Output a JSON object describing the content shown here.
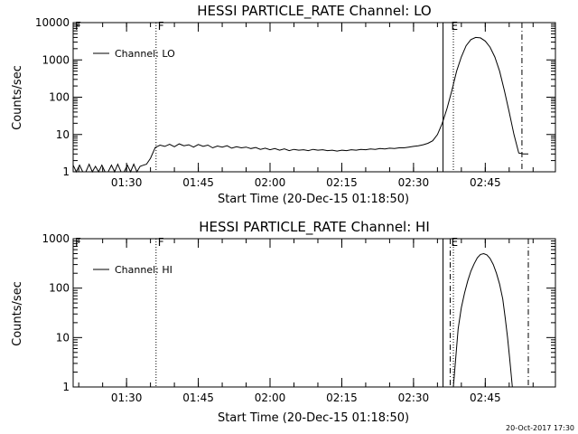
{
  "chart_data": [
    {
      "type": "line",
      "title": "HESSI PARTICLE_RATE Channel: LO",
      "xlabel": "Start Time (20-Dec-15 01:18:50)",
      "ylabel": "Counts/sec",
      "yscale": "log",
      "ylim": [
        1,
        10000
      ],
      "xlim": [
        "01:18:50",
        "02:59:40"
      ],
      "xticks": [
        "01:30",
        "01:45",
        "02:00",
        "02:15",
        "02:30",
        "02:45"
      ],
      "yticks": [
        "1",
        "10",
        "100",
        "1000",
        "10000"
      ],
      "legend": "top-left",
      "series": [
        {
          "name": "Channel: LO",
          "x": [
            "01:18:50",
            "01:19:30",
            "01:20:10",
            "01:20:50",
            "01:21:30",
            "01:22:10",
            "01:22:50",
            "01:23:30",
            "01:24:10",
            "01:24:50",
            "01:25:30",
            "01:26:10",
            "01:26:50",
            "01:27:30",
            "01:28:10",
            "01:28:50",
            "01:29:30",
            "01:30:10",
            "01:30:50",
            "01:31:30",
            "01:32:10",
            "01:32:50",
            "01:33:30",
            "01:34:10",
            "01:35:00",
            "01:36:00",
            "01:37:00",
            "01:38:00",
            "01:39:00",
            "01:40:00",
            "01:41:00",
            "01:42:00",
            "01:43:00",
            "01:44:00",
            "01:45:00",
            "01:46:00",
            "01:47:00",
            "01:48:00",
            "01:49:00",
            "01:50:00",
            "01:51:00",
            "01:52:00",
            "01:53:00",
            "01:54:00",
            "01:55:00",
            "01:56:00",
            "01:57:00",
            "01:58:00",
            "01:59:00",
            "02:00:00",
            "02:01:00",
            "02:02:00",
            "02:03:00",
            "02:04:00",
            "02:05:00",
            "02:06:00",
            "02:07:00",
            "02:08:00",
            "02:09:00",
            "02:10:00",
            "02:11:00",
            "02:12:00",
            "02:13:00",
            "02:14:00",
            "02:15:00",
            "02:16:00",
            "02:17:00",
            "02:18:00",
            "02:19:00",
            "02:20:00",
            "02:21:00",
            "02:22:00",
            "02:23:00",
            "02:24:00",
            "02:25:00",
            "02:26:00",
            "02:27:00",
            "02:28:00",
            "02:29:00",
            "02:30:00",
            "02:31:00",
            "02:32:00",
            "02:33:00",
            "02:34:00",
            "02:35:00",
            "02:36:00",
            "02:37:00",
            "02:38:00",
            "02:39:00",
            "02:40:00",
            "02:41:00",
            "02:42:00",
            "02:43:00",
            "02:44:00",
            "02:45:00",
            "02:46:00",
            "02:47:00",
            "02:48:00",
            "02:49:00",
            "02:50:00",
            "02:51:00",
            "02:52:00",
            "02:53:00",
            "02:54:00"
          ],
          "values": [
            1.5,
            1,
            1.5,
            1,
            1,
            1.6,
            1,
            1.4,
            1,
            1.5,
            1,
            1,
            1.5,
            1,
            1.6,
            1,
            1,
            1.5,
            1,
            1.6,
            1,
            1.4,
            1.5,
            1.6,
            2.3,
            4.5,
            5.2,
            4.8,
            5.5,
            4.7,
            5.6,
            5.0,
            5.3,
            4.6,
            5.4,
            4.8,
            5.2,
            4.4,
            4.9,
            4.6,
            5.0,
            4.3,
            4.7,
            4.4,
            4.6,
            4.2,
            4.5,
            4.0,
            4.3,
            3.9,
            4.2,
            3.8,
            4.1,
            3.7,
            4.0,
            3.8,
            3.9,
            3.7,
            4.0,
            3.8,
            3.9,
            3.7,
            3.8,
            3.6,
            3.8,
            3.7,
            3.9,
            3.8,
            4.0,
            3.9,
            4.1,
            4.0,
            4.2,
            4.1,
            4.3,
            4.2,
            4.4,
            4.4,
            4.6,
            4.8,
            5.0,
            5.3,
            5.8,
            6.8,
            10,
            20,
            50,
            150,
            500,
            1200,
            2400,
            3500,
            4000,
            3900,
            3200,
            2200,
            1200,
            500,
            150,
            40,
            10,
            3.2,
            3.0,
            3.0
          ]
        }
      ],
      "annotations": [
        "F",
        "E"
      ]
    },
    {
      "type": "line",
      "title": "HESSI PARTICLE_RATE Channel: HI",
      "xlabel": "Start Time (20-Dec-15 01:18:50)",
      "ylabel": "Counts/sec",
      "yscale": "log",
      "ylim": [
        1,
        1000
      ],
      "xlim": [
        "01:18:50",
        "02:59:40"
      ],
      "xticks": [
        "01:30",
        "01:45",
        "02:00",
        "02:15",
        "02:30",
        "02:45"
      ],
      "yticks": [
        "1",
        "10",
        "100",
        "1000"
      ],
      "legend": "top-left",
      "series": [
        {
          "name": "Channel: HI",
          "x": [
            "02:38:20",
            "02:38:50",
            "02:39:20",
            "02:40:00",
            "02:40:40",
            "02:41:20",
            "02:42:00",
            "02:42:40",
            "02:43:20",
            "02:44:00",
            "02:44:40",
            "02:45:20",
            "02:46:00",
            "02:46:40",
            "02:47:20",
            "02:48:00",
            "02:48:40",
            "02:49:10",
            "02:49:40",
            "02:50:05",
            "02:50:25",
            "02:50:40"
          ],
          "values": [
            1,
            4,
            15,
            40,
            80,
            140,
            220,
            310,
            410,
            480,
            500,
            470,
            400,
            300,
            200,
            120,
            60,
            25,
            10,
            4,
            1.8,
            1
          ]
        }
      ],
      "annotations": [
        "F",
        "E"
      ]
    }
  ],
  "timestamp": "20-Oct-2017 17:30"
}
